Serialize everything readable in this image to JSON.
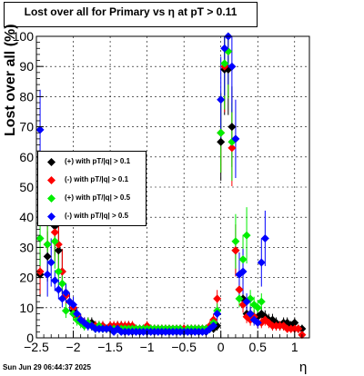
{
  "chart_data": {
    "type": "scatter",
    "title": "Lost over all for Primary vs    η  at pT > 0.11",
    "xlabel": "η",
    "ylabel": "Lost over all (%)",
    "xlim": [
      -2.5,
      1.2
    ],
    "ylim": [
      0,
      100
    ],
    "x_ticks": [
      "−2.5",
      "−2",
      "−1.5",
      "−1",
      "−0.5",
      "0",
      "0.5",
      "1"
    ],
    "y_ticks": [
      "0",
      "10",
      "20",
      "30",
      "40",
      "50",
      "60",
      "70",
      "80",
      "90",
      "100"
    ],
    "grid": true,
    "legend_position": "middle-left",
    "series": [
      {
        "name": "(+) with pT/|q| > 0.1",
        "color": "#000000",
        "x": [
          -2.45,
          -2.35,
          -2.25,
          -2.2,
          -2.15,
          -2.1,
          -2.05,
          -2.0,
          -1.95,
          -1.9,
          -1.85,
          -1.8,
          -1.75,
          -1.7,
          -1.65,
          -1.6,
          -1.55,
          -1.5,
          -1.45,
          -1.4,
          -1.35,
          -1.3,
          -1.25,
          -1.2,
          -1.15,
          -1.1,
          -1.05,
          -1.0,
          -0.95,
          -0.9,
          -0.85,
          -0.8,
          -0.75,
          -0.7,
          -0.65,
          -0.6,
          -0.55,
          -0.5,
          -0.45,
          -0.4,
          -0.35,
          -0.3,
          -0.25,
          -0.2,
          -0.15,
          -0.1,
          -0.05,
          0.0,
          0.05,
          0.1,
          0.15,
          0.2,
          0.25,
          0.3,
          0.35,
          0.4,
          0.45,
          0.5,
          0.55,
          0.6,
          0.65,
          0.7,
          0.75,
          0.8,
          0.85,
          0.9,
          0.95,
          1.0,
          1.05,
          1.1
        ],
        "y": [
          21,
          27,
          37,
          29,
          22,
          15,
          12,
          9,
          7,
          6,
          5,
          5,
          5,
          4,
          4,
          4,
          3,
          4,
          3,
          4,
          4,
          3,
          4,
          3,
          3,
          3,
          3,
          3,
          3,
          3,
          3,
          3,
          3,
          3,
          3,
          3,
          3,
          3,
          3,
          3,
          3,
          3,
          3,
          3,
          3,
          3,
          4,
          65,
          89,
          89,
          70,
          29,
          16,
          13,
          8,
          8,
          7,
          7,
          8,
          7,
          6,
          6,
          5,
          4,
          5,
          5,
          4,
          5,
          3,
          3
        ]
      },
      {
        "name": "(-) with pT/|q| > 0.1",
        "color": "#ff0000",
        "x": [
          -2.45,
          -2.35,
          -2.25,
          -2.2,
          -2.15,
          -2.1,
          -2.05,
          -2.0,
          -1.95,
          -1.9,
          -1.85,
          -1.8,
          -1.75,
          -1.7,
          -1.65,
          -1.6,
          -1.55,
          -1.5,
          -1.45,
          -1.4,
          -1.35,
          -1.3,
          -1.25,
          -1.2,
          -1.15,
          -1.1,
          -1.05,
          -1.0,
          -0.95,
          -0.9,
          -0.85,
          -0.8,
          -0.75,
          -0.7,
          -0.65,
          -0.6,
          -0.55,
          -0.5,
          -0.45,
          -0.4,
          -0.35,
          -0.3,
          -0.25,
          -0.2,
          -0.15,
          -0.1,
          -0.05,
          0.0,
          0.05,
          0.1,
          0.15,
          0.2,
          0.25,
          0.3,
          0.35,
          0.4,
          0.45,
          0.5,
          0.55,
          0.6,
          0.65,
          0.7,
          0.75,
          0.8,
          0.85,
          0.9,
          0.95,
          1.0,
          1.05,
          1.1
        ],
        "y": [
          22,
          31,
          35,
          31,
          22,
          14,
          12,
          10,
          7,
          6,
          5,
          5,
          4,
          4,
          4,
          4,
          3,
          4,
          4,
          4,
          4,
          4,
          4,
          4,
          3,
          3,
          3,
          4,
          3,
          3,
          3,
          3,
          3,
          3,
          3,
          3,
          3,
          3,
          3,
          3,
          3,
          3,
          3,
          3,
          4,
          6,
          13,
          68,
          90,
          95,
          63,
          29,
          16,
          11,
          7,
          6,
          7,
          5,
          5,
          6,
          5,
          4,
          4,
          4,
          4,
          3,
          3,
          3,
          3,
          1
        ]
      },
      {
        "name": "(+) with pT/|q| > 0.5",
        "color": "#00ee00",
        "x": [
          -2.45,
          -2.35,
          -2.25,
          -2.2,
          -2.15,
          -2.1,
          -2.05,
          -2.0,
          -1.95,
          -1.9,
          -1.85,
          -1.8,
          -1.75,
          -1.7,
          -1.65,
          -1.6,
          -1.55,
          -1.5,
          -1.45,
          -1.4,
          -1.35,
          -1.3,
          -1.25,
          -1.2,
          -1.15,
          -1.1,
          -1.05,
          -1.0,
          -0.95,
          -0.9,
          -0.85,
          -0.8,
          -0.75,
          -0.7,
          -0.65,
          -0.6,
          -0.55,
          -0.5,
          -0.45,
          -0.4,
          -0.35,
          -0.3,
          -0.25,
          -0.2,
          -0.15,
          -0.1,
          -0.05,
          0.0,
          0.05,
          0.1,
          0.15,
          0.2,
          0.25,
          0.3,
          0.35,
          0.4,
          0.45,
          0.5,
          0.55
        ],
        "y": [
          33,
          31,
          32,
          22,
          18,
          9,
          12,
          8,
          6,
          5,
          4,
          5,
          4,
          3,
          4,
          3,
          3,
          3,
          3,
          3,
          3,
          3,
          3,
          3,
          3,
          3,
          3,
          3,
          3,
          3,
          3,
          3,
          3,
          3,
          3,
          3,
          3,
          2,
          3,
          3,
          3,
          3,
          3,
          3,
          3,
          5,
          9,
          68,
          91,
          95,
          65,
          32,
          13,
          26,
          34,
          13,
          11,
          10,
          12
        ]
      },
      {
        "name": "(-) with pT/|q| > 0.5",
        "color": "#0000ff",
        "x": [
          -2.45,
          -2.35,
          -2.3,
          -2.25,
          -2.2,
          -2.15,
          -2.1,
          -2.05,
          -2.0,
          -1.95,
          -1.9,
          -1.85,
          -1.8,
          -1.75,
          -1.7,
          -1.65,
          -1.6,
          -1.55,
          -1.5,
          -1.45,
          -1.4,
          -1.35,
          -1.3,
          -1.25,
          -1.2,
          -1.15,
          -1.1,
          -1.05,
          -1.0,
          -0.95,
          -0.9,
          -0.85,
          -0.8,
          -0.75,
          -0.7,
          -0.65,
          -0.6,
          -0.55,
          -0.5,
          -0.45,
          -0.4,
          -0.35,
          -0.3,
          -0.25,
          -0.2,
          -0.15,
          -0.1,
          -0.05,
          0.0,
          0.05,
          0.1,
          0.15,
          0.2,
          0.25,
          0.3,
          0.35,
          0.4,
          0.45,
          0.5,
          0.55,
          0.6
        ],
        "y": [
          69,
          21,
          25,
          19,
          16,
          13,
          15,
          12,
          11,
          8,
          6,
          5,
          4,
          4,
          3,
          3,
          3,
          3,
          3,
          2,
          3,
          2,
          2,
          2,
          2,
          2,
          2,
          2,
          2,
          2,
          2,
          2,
          2,
          2,
          2,
          2,
          2,
          2,
          2,
          2,
          2,
          2,
          2,
          2,
          2,
          3,
          4,
          8,
          79,
          96,
          100,
          90,
          66,
          21,
          22,
          12,
          8,
          6,
          5,
          25,
          33
        ]
      }
    ]
  },
  "footer": {
    "date": "Sun Jun 29 06:44:37 2025"
  }
}
